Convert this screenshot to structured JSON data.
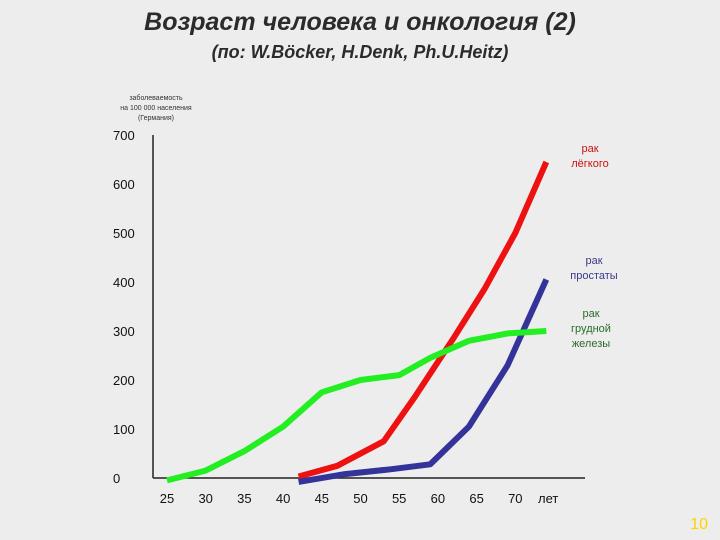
{
  "title": "Возраст человека и онкология (2)",
  "subtitle": "(по: W.Böcker, H.Denk, Ph.U.Heitz)",
  "page_number": "10",
  "chart_data": {
    "type": "line",
    "title": "Возраст человека и онкология (2)",
    "subtitle": "(по: W.Böcker, H.Denk, Ph.U.Heitz)",
    "ylabel_lines": [
      "заболеваемость",
      "на 100 000 населения",
      "(Германия)"
    ],
    "xlabel": "лет",
    "x_ticks": [
      25,
      30,
      35,
      40,
      45,
      50,
      55,
      60,
      65,
      70
    ],
    "y_ticks": [
      0,
      100,
      200,
      300,
      400,
      500,
      600,
      700
    ],
    "xlim": [
      25,
      76
    ],
    "ylim": [
      0,
      700
    ],
    "grid": false,
    "series": [
      {
        "name_lines": [
          "рак",
          "лёгкого"
        ],
        "color": "#ee1111",
        "points": [
          [
            42,
            3
          ],
          [
            47,
            25
          ],
          [
            53,
            75
          ],
          [
            57,
            165
          ],
          [
            62,
            285
          ],
          [
            66,
            385
          ],
          [
            70,
            500
          ],
          [
            74,
            645
          ]
        ]
      },
      {
        "name_lines": [
          "рак",
          "простаты"
        ],
        "color": "#33339a",
        "points": [
          [
            42,
            -8
          ],
          [
            48,
            8
          ],
          [
            54,
            18
          ],
          [
            59,
            28
          ],
          [
            64,
            105
          ],
          [
            69,
            230
          ],
          [
            74,
            405
          ]
        ]
      },
      {
        "name_lines": [
          "рак",
          "грудной",
          "железы"
        ],
        "color": "#22ee22",
        "points": [
          [
            25,
            -5
          ],
          [
            30,
            15
          ],
          [
            35,
            55
          ],
          [
            40,
            105
          ],
          [
            45,
            175
          ],
          [
            50,
            200
          ],
          [
            55,
            210
          ],
          [
            59,
            245
          ],
          [
            64,
            280
          ],
          [
            69,
            295
          ],
          [
            74,
            300
          ]
        ]
      }
    ]
  }
}
